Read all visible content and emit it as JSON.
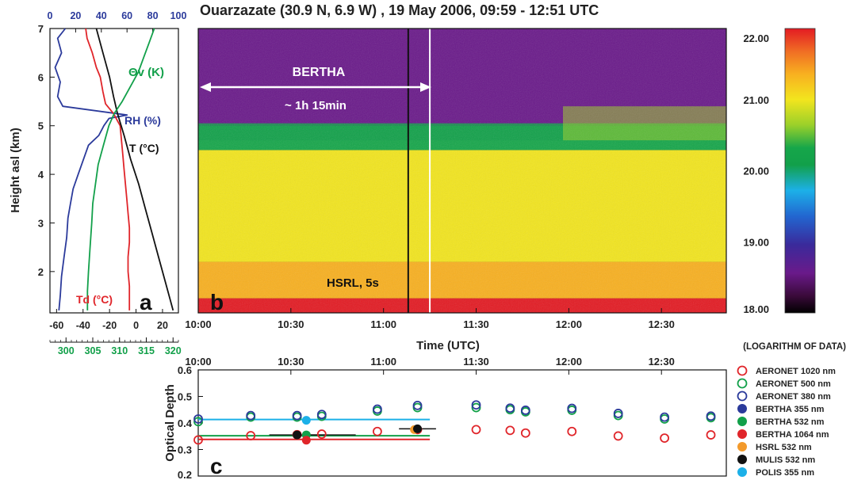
{
  "title": "Ouarzazate (30.9 N, 6.9 W) , 19 May 2006, 09:59 - 12:51 UTC",
  "colors": {
    "blue": "#2b3a9b",
    "green": "#12a04a",
    "red": "#e0252a",
    "black": "#111111",
    "orange": "#f39a2b",
    "cyan": "#1cb0e8",
    "white": "#ffffff"
  },
  "chart_data": [
    {
      "id": "a",
      "type": "line",
      "panel_label": "a",
      "ylabel": "Height asl (km)",
      "ylim": [
        1.15,
        7.0
      ],
      "yticks": [
        "2",
        "3",
        "4",
        "5",
        "6",
        "7"
      ],
      "axis_temp": {
        "ticks": [
          "-60",
          "-40",
          "-20",
          "0",
          "20"
        ],
        "range": [
          -65,
          32
        ]
      },
      "axis_rh": {
        "ticks": [
          "0",
          "20",
          "40",
          "60",
          "80",
          "100"
        ],
        "range": [
          0,
          100
        ]
      },
      "axis_theta": {
        "ticks": [
          "300",
          "305",
          "310",
          "315",
          "320"
        ],
        "range": [
          297,
          321
        ]
      },
      "series": [
        {
          "name": "RH (%)",
          "axis": "rh",
          "points": [
            [
              12,
              7.0
            ],
            [
              6,
              6.8
            ],
            [
              9,
              6.5
            ],
            [
              4,
              6.2
            ],
            [
              8,
              5.9
            ],
            [
              6,
              5.6
            ],
            [
              10,
              5.4
            ],
            [
              60,
              5.22
            ],
            [
              46,
              5.15
            ],
            [
              42,
              5.0
            ],
            [
              38,
              4.8
            ],
            [
              30,
              4.6
            ],
            [
              26,
              4.3
            ],
            [
              22,
              4.0
            ],
            [
              18,
              3.7
            ],
            [
              16,
              3.4
            ],
            [
              14,
              3.1
            ],
            [
              13,
              2.7
            ],
            [
              11,
              2.3
            ],
            [
              9,
              1.9
            ],
            [
              8,
              1.5
            ],
            [
              7,
              1.2
            ]
          ]
        },
        {
          "name": "Td (°C)",
          "axis": "temp",
          "points": [
            [
              -38,
              7.0
            ],
            [
              -37,
              6.8
            ],
            [
              -33,
              6.5
            ],
            [
              -30,
              6.2
            ],
            [
              -27,
              6.0
            ],
            [
              -25,
              5.7
            ],
            [
              -23,
              5.45
            ],
            [
              -17,
              5.25
            ],
            [
              -12,
              5.0
            ],
            [
              -11,
              4.7
            ],
            [
              -10,
              4.4
            ],
            [
              -9,
              4.1
            ],
            [
              -8,
              3.8
            ],
            [
              -7,
              3.5
            ],
            [
              -6,
              3.2
            ],
            [
              -5,
              2.9
            ],
            [
              -5,
              2.6
            ],
            [
              -6,
              2.3
            ],
            [
              -6,
              2.0
            ],
            [
              -5,
              1.7
            ],
            [
              -5,
              1.4
            ],
            [
              -5,
              1.2
            ]
          ]
        },
        {
          "name": "T (°C)",
          "axis": "temp",
          "points": [
            [
              -30,
              7.0
            ],
            [
              -25,
              6.5
            ],
            [
              -20,
              6.0
            ],
            [
              -17,
              5.6
            ],
            [
              -14,
              5.25
            ],
            [
              -9,
              4.8
            ],
            [
              -4,
              4.3
            ],
            [
              2,
              3.8
            ],
            [
              7,
              3.3
            ],
            [
              12,
              2.8
            ],
            [
              17,
              2.3
            ],
            [
              22,
              1.8
            ],
            [
              26,
              1.4
            ],
            [
              28,
              1.2
            ]
          ]
        },
        {
          "name": "Θv (K)",
          "axis": "theta",
          "points": [
            [
              316.5,
              7.0
            ],
            [
              315.5,
              6.7
            ],
            [
              314.5,
              6.4
            ],
            [
              313.5,
              6.1
            ],
            [
              312.0,
              5.8
            ],
            [
              310.5,
              5.5
            ],
            [
              309.0,
              5.25
            ],
            [
              308.0,
              5.0
            ],
            [
              307.0,
              4.6
            ],
            [
              306.0,
              4.2
            ],
            [
              305.5,
              3.8
            ],
            [
              305.0,
              3.4
            ],
            [
              304.8,
              3.0
            ],
            [
              304.5,
              2.5
            ],
            [
              304.2,
              2.0
            ],
            [
              304.0,
              1.6
            ],
            [
              304.0,
              1.2
            ]
          ]
        }
      ],
      "labels": {
        "theta": "Θv (K)",
        "rh": "RH (%)",
        "t": "T (°C)",
        "td": "Td (°C)"
      }
    },
    {
      "id": "b",
      "type": "heatmap",
      "panel_label": "b",
      "xlabel": "Time (UTC)",
      "xticks": [
        "10:00",
        "10:30",
        "11:00",
        "11:30",
        "12:00",
        "12:30"
      ],
      "xlim_minutes_after_1000": [
        0,
        171
      ],
      "ylim": [
        1.15,
        7.0
      ],
      "colorbar": {
        "ticks": [
          "22.00",
          "21.00",
          "20.00",
          "19.00",
          "18.00"
        ],
        "range": [
          18,
          22
        ],
        "note": "(LOGARITHM OF DATA)"
      },
      "layers": [
        {
          "from_km": 1.15,
          "to_km": 1.45,
          "value": 21.8
        },
        {
          "from_km": 1.45,
          "to_km": 2.2,
          "value": 20.9
        },
        {
          "from_km": 2.2,
          "to_km": 4.5,
          "value": 20.6
        },
        {
          "from_km": 4.5,
          "to_km": 5.0,
          "value": 20.1
        },
        {
          "from_km": 5.0,
          "to_km": 7.0,
          "value": 18.5
        }
      ],
      "vertical_markers": [
        {
          "time": "11:08",
          "color": "black"
        },
        {
          "time": "11:15",
          "color": "white"
        }
      ],
      "annotations": {
        "bertha": "BERTHA",
        "duration": "~ 1h 15min",
        "hsrl": "HSRL, 5s"
      }
    },
    {
      "id": "c",
      "type": "scatter",
      "panel_label": "c",
      "ylabel": "Optical Depth",
      "ylim": [
        0.2,
        0.6
      ],
      "yticks": [
        "0.2",
        "0.3",
        "0.4",
        "0.5",
        "0.6"
      ],
      "xticks": [
        "10:00",
        "10:30",
        "11:00",
        "11:30",
        "12:00",
        "12:30"
      ],
      "series": [
        {
          "name": "AERONET 1020 nm",
          "color": "red",
          "marker": "open",
          "points": [
            [
              "10:00",
              0.336
            ],
            [
              "10:17",
              0.352
            ],
            [
              "10:32",
              0.356
            ],
            [
              "10:40",
              0.358
            ],
            [
              "10:58",
              0.368
            ],
            [
              "11:11",
              0.375
            ],
            [
              "11:30",
              0.375
            ],
            [
              "11:41",
              0.372
            ],
            [
              "11:46",
              0.362
            ],
            [
              "12:01",
              0.368
            ],
            [
              "12:16",
              0.351
            ],
            [
              "12:31",
              0.343
            ],
            [
              "12:46",
              0.355
            ]
          ]
        },
        {
          "name": "AERONET 500 nm",
          "color": "green",
          "marker": "open",
          "points": [
            [
              "10:00",
              0.405
            ],
            [
              "10:17",
              0.422
            ],
            [
              "10:32",
              0.422
            ],
            [
              "10:40",
              0.425
            ],
            [
              "10:58",
              0.445
            ],
            [
              "11:11",
              0.458
            ],
            [
              "11:30",
              0.458
            ],
            [
              "11:41",
              0.45
            ],
            [
              "11:46",
              0.442
            ],
            [
              "12:01",
              0.448
            ],
            [
              "12:16",
              0.428
            ],
            [
              "12:31",
              0.415
            ],
            [
              "12:46",
              0.42
            ]
          ]
        },
        {
          "name": "AERONET 380 nm",
          "color": "blue",
          "marker": "open",
          "points": [
            [
              "10:00",
              0.415
            ],
            [
              "10:17",
              0.428
            ],
            [
              "10:32",
              0.428
            ],
            [
              "10:40",
              0.432
            ],
            [
              "10:58",
              0.452
            ],
            [
              "11:11",
              0.466
            ],
            [
              "11:30",
              0.468
            ],
            [
              "11:41",
              0.456
            ],
            [
              "11:46",
              0.448
            ],
            [
              "12:01",
              0.455
            ],
            [
              "12:16",
              0.436
            ],
            [
              "12:31",
              0.422
            ],
            [
              "12:46",
              0.426
            ]
          ]
        },
        {
          "name": "BERTHA 355 nm",
          "color": "blue",
          "marker": "filled",
          "points": []
        },
        {
          "name": "BERTHA 532 nm",
          "color": "green",
          "marker": "filled",
          "points": [
            [
              "10:35",
              0.355
            ]
          ]
        },
        {
          "name": "BERTHA 1064 nm",
          "color": "red",
          "marker": "filled",
          "points": [
            [
              "10:35",
              0.335
            ]
          ]
        },
        {
          "name": "HSRL 532 nm",
          "color": "orange",
          "marker": "filled",
          "points": [
            [
              "11:10",
              0.375
            ]
          ]
        },
        {
          "name": "MULIS 532 nm",
          "color": "black",
          "marker": "filled",
          "points": [
            [
              "10:32",
              0.355
            ],
            [
              "11:11",
              0.378
            ]
          ]
        },
        {
          "name": "POLIS 355 nm",
          "color": "cyan",
          "marker": "filled",
          "points": [
            [
              "10:35",
              0.41
            ]
          ]
        }
      ],
      "hlines": [
        {
          "value": 0.413,
          "color": "cyan",
          "from": "10:00",
          "to": "11:15"
        },
        {
          "value": 0.352,
          "color": "green",
          "from": "10:00",
          "to": "11:15"
        },
        {
          "value": 0.338,
          "color": "red",
          "from": "10:00",
          "to": "11:15"
        }
      ],
      "errorbars": [
        {
          "time": "10:32",
          "value": 0.355,
          "half_width_min": 9,
          "color": "black"
        },
        {
          "time": "10:42",
          "value": 0.355,
          "half_width_min": 9,
          "color": "black"
        },
        {
          "time": "11:11",
          "value": 0.378,
          "half_width_min": 6,
          "color": "black"
        }
      ]
    }
  ]
}
